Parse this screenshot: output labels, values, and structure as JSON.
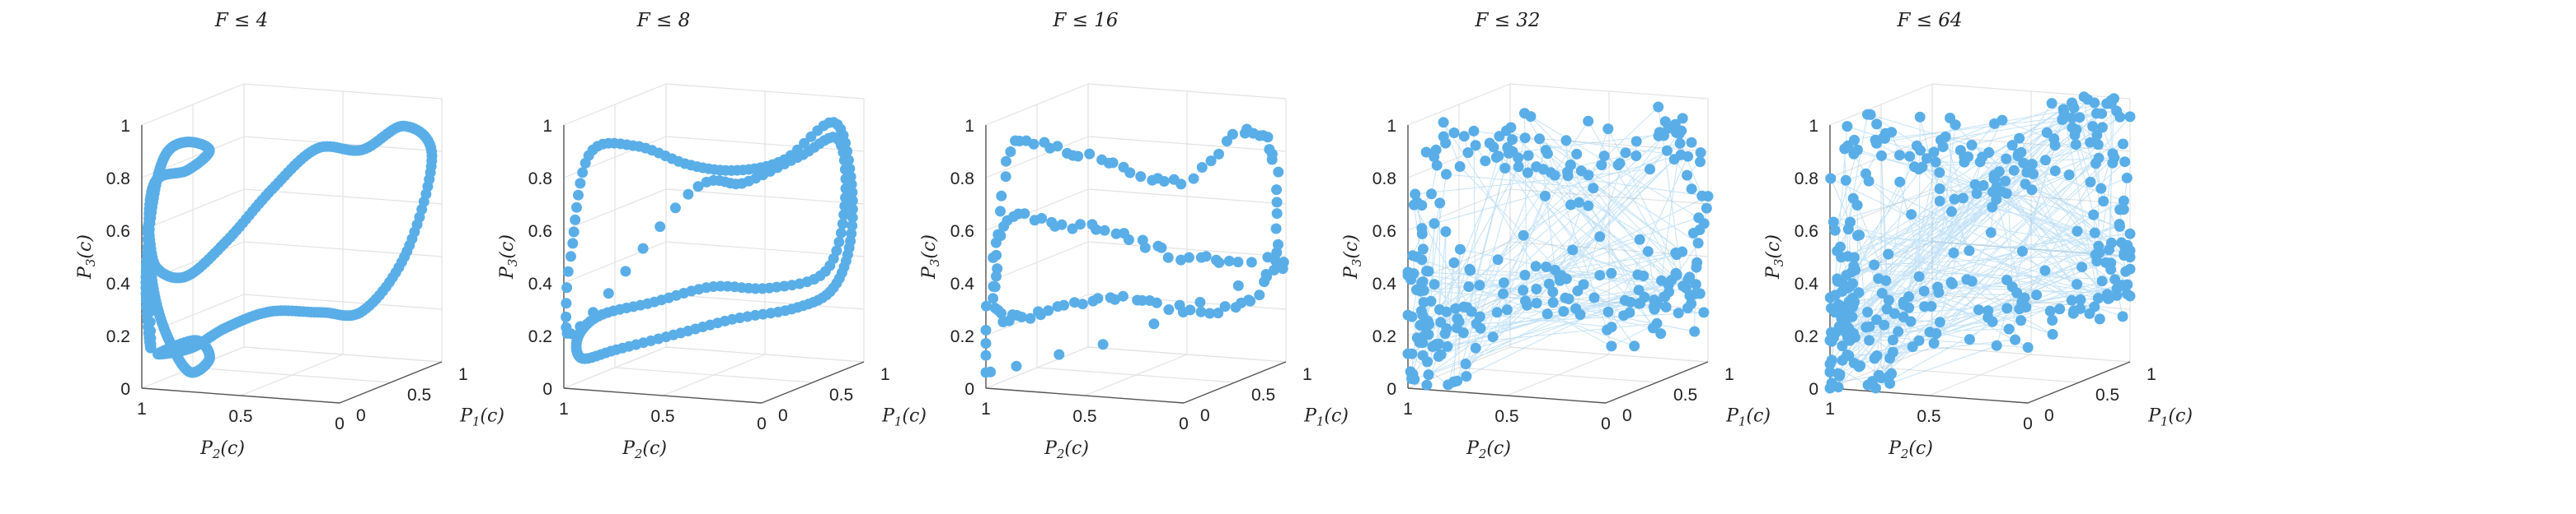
{
  "chart_data": [
    {
      "type": "scatter",
      "title": "F ≤ 4",
      "xlabel": "P_2(c)",
      "ylabel": "P_1(c)",
      "zlabel": "P_3(c)",
      "xlim": [
        0,
        1
      ],
      "ylim": [
        0,
        1
      ],
      "zlim": [
        0,
        1
      ],
      "xticks": [
        "0",
        "0.5",
        "1"
      ],
      "yticks": [
        "0",
        "0.5",
        "1"
      ],
      "zticks": [
        "0",
        "0.2",
        "0.4",
        "0.6",
        "0.8",
        "1"
      ],
      "marker_color": "#5aaee8",
      "curve_density": 420,
      "random_points": 0,
      "jitter": 0.0,
      "grid": true,
      "path": [
        {
          "p2": 0.98,
          "p1": 0.05,
          "p3": 0.15
        },
        {
          "p2": 0.99,
          "p1": 0.02,
          "p3": 0.4
        },
        {
          "p2": 0.97,
          "p1": 0.05,
          "p3": 0.7
        },
        {
          "p2": 0.92,
          "p1": 0.08,
          "p3": 0.88
        },
        {
          "p2": 0.82,
          "p1": 0.1,
          "p3": 0.93
        },
        {
          "p2": 0.72,
          "p1": 0.12,
          "p3": 0.9
        },
        {
          "p2": 0.8,
          "p1": 0.06,
          "p3": 0.83
        },
        {
          "p2": 0.95,
          "p1": 0.03,
          "p3": 0.78
        },
        {
          "p2": 0.99,
          "p1": 0.05,
          "p3": 0.55
        },
        {
          "p2": 0.97,
          "p1": 0.08,
          "p3": 0.32
        },
        {
          "p2": 0.9,
          "p1": 0.1,
          "p3": 0.15
        },
        {
          "p2": 0.82,
          "p1": 0.13,
          "p3": 0.05
        },
        {
          "p2": 0.75,
          "p1": 0.18,
          "p3": 0.1
        },
        {
          "p2": 0.83,
          "p1": 0.2,
          "p3": 0.16
        },
        {
          "p2": 0.96,
          "p1": 0.08,
          "p3": 0.12
        },
        {
          "p2": 0.88,
          "p1": 0.25,
          "p3": 0.12
        },
        {
          "p2": 0.78,
          "p1": 0.4,
          "p3": 0.18
        },
        {
          "p2": 0.65,
          "p1": 0.58,
          "p3": 0.22
        },
        {
          "p2": 0.48,
          "p1": 0.75,
          "p3": 0.2
        },
        {
          "p2": 0.32,
          "p1": 0.85,
          "p3": 0.2
        },
        {
          "p2": 0.15,
          "p1": 0.95,
          "p3": 0.42
        },
        {
          "p2": 0.05,
          "p1": 1.0,
          "p3": 0.78
        },
        {
          "p2": 0.15,
          "p1": 0.92,
          "p3": 0.9
        },
        {
          "p2": 0.3,
          "p1": 0.8,
          "p3": 0.82
        },
        {
          "p2": 0.45,
          "p1": 0.65,
          "p3": 0.84
        },
        {
          "p2": 0.6,
          "p1": 0.5,
          "p3": 0.7
        },
        {
          "p2": 0.75,
          "p1": 0.35,
          "p3": 0.52
        },
        {
          "p2": 0.88,
          "p1": 0.2,
          "p3": 0.4
        },
        {
          "p2": 0.97,
          "p1": 0.08,
          "p3": 0.45
        },
        {
          "p2": 0.99,
          "p1": 0.04,
          "p3": 0.6
        }
      ]
    },
    {
      "type": "scatter",
      "title": "F ≤ 8",
      "xlabel": "P_2(c)",
      "ylabel": "P_1(c)",
      "zlabel": "P_3(c)",
      "xlim": [
        0,
        1
      ],
      "ylim": [
        0,
        1
      ],
      "zlim": [
        0,
        1
      ],
      "xticks": [
        "0",
        "0.5",
        "1"
      ],
      "yticks": [
        "0",
        "0.5",
        "1"
      ],
      "zticks": [
        "0",
        "0.2",
        "0.4",
        "0.6",
        "0.8",
        "1"
      ],
      "marker_color": "#5aaee8",
      "curve_density": 220,
      "random_points": 0,
      "jitter": 0.0,
      "grid": true,
      "path": [
        {
          "p2": 0.99,
          "p1": 0.05,
          "p3": 0.2
        },
        {
          "p2": 0.98,
          "p1": 0.05,
          "p3": 0.55
        },
        {
          "p2": 0.92,
          "p1": 0.1,
          "p3": 0.88
        },
        {
          "p2": 0.75,
          "p1": 0.22,
          "p3": 0.9
        },
        {
          "p2": 0.55,
          "p1": 0.35,
          "p3": 0.82
        },
        {
          "p2": 0.4,
          "p1": 0.52,
          "p3": 0.78
        },
        {
          "p2": 0.25,
          "p1": 0.7,
          "p3": 0.8
        },
        {
          "p2": 0.1,
          "p1": 0.9,
          "p3": 0.92
        },
        {
          "p2": 0.05,
          "p1": 0.97,
          "p3": 0.7
        },
        {
          "p2": 0.06,
          "p1": 0.98,
          "p3": 0.45
        },
        {
          "p2": 0.12,
          "p1": 0.92,
          "p3": 0.28
        },
        {
          "p2": 0.25,
          "p1": 0.8,
          "p3": 0.22
        },
        {
          "p2": 0.45,
          "p1": 0.6,
          "p3": 0.2
        },
        {
          "p2": 0.65,
          "p1": 0.4,
          "p3": 0.16
        },
        {
          "p2": 0.85,
          "p1": 0.22,
          "p3": 0.12
        },
        {
          "p2": 0.96,
          "p1": 0.1,
          "p3": 0.1
        },
        {
          "p2": 0.98,
          "p1": 0.1,
          "p3": 0.18
        },
        {
          "p2": 0.92,
          "p1": 0.2,
          "p3": 0.25
        },
        {
          "p2": 0.75,
          "p1": 0.38,
          "p3": 0.28
        },
        {
          "p2": 0.55,
          "p1": 0.58,
          "p3": 0.32
        },
        {
          "p2": 0.35,
          "p1": 0.75,
          "p3": 0.3
        },
        {
          "p2": 0.15,
          "p1": 0.92,
          "p3": 0.35
        },
        {
          "p2": 0.08,
          "p1": 0.97,
          "p3": 0.6
        },
        {
          "p2": 0.1,
          "p1": 0.94,
          "p3": 0.85
        },
        {
          "p2": 0.22,
          "p1": 0.8,
          "p3": 0.8
        },
        {
          "p2": 0.4,
          "p1": 0.6,
          "p3": 0.72
        },
        {
          "p2": 0.58,
          "p1": 0.42,
          "p3": 0.7
        }
      ]
    },
    {
      "type": "scatter",
      "title": "F ≤ 16",
      "xlabel": "P_2(c)",
      "ylabel": "P_1(c)",
      "zlabel": "P_3(c)",
      "xlim": [
        0,
        1
      ],
      "ylim": [
        0,
        1
      ],
      "zlim": [
        0,
        1
      ],
      "xticks": [
        "0",
        "0.5",
        "1"
      ],
      "yticks": [
        "0",
        "0.5",
        "1"
      ],
      "zticks": [
        "0",
        "0.2",
        "0.4",
        "0.6",
        "0.8",
        "1"
      ],
      "marker_color": "#5aaee8",
      "curve_density": 150,
      "random_points": 0,
      "jitter": 0.015,
      "grid": true,
      "path": [
        {
          "p2": 0.99,
          "p1": 0.03,
          "p3": 0.05
        },
        {
          "p2": 0.97,
          "p1": 0.05,
          "p3": 0.45
        },
        {
          "p2": 0.92,
          "p1": 0.1,
          "p3": 0.9
        },
        {
          "p2": 0.75,
          "p1": 0.25,
          "p3": 0.88
        },
        {
          "p2": 0.55,
          "p1": 0.45,
          "p3": 0.8
        },
        {
          "p2": 0.35,
          "p1": 0.65,
          "p3": 0.72
        },
        {
          "p2": 0.15,
          "p1": 0.85,
          "p3": 0.88
        },
        {
          "p2": 0.05,
          "p1": 0.97,
          "p3": 0.8
        },
        {
          "p2": 0.04,
          "p1": 0.98,
          "p3": 0.45
        },
        {
          "p2": 0.12,
          "p1": 0.9,
          "p3": 0.25
        },
        {
          "p2": 0.3,
          "p1": 0.72,
          "p3": 0.22
        },
        {
          "p2": 0.5,
          "p1": 0.52,
          "p3": 0.28
        },
        {
          "p2": 0.7,
          "p1": 0.32,
          "p3": 0.3
        },
        {
          "p2": 0.88,
          "p1": 0.15,
          "p3": 0.25
        },
        {
          "p2": 0.98,
          "p1": 0.05,
          "p3": 0.3
        },
        {
          "p2": 0.95,
          "p1": 0.08,
          "p3": 0.62
        },
        {
          "p2": 0.8,
          "p1": 0.25,
          "p3": 0.6
        },
        {
          "p2": 0.6,
          "p1": 0.45,
          "p3": 0.55
        },
        {
          "p2": 0.4,
          "p1": 0.62,
          "p3": 0.45
        },
        {
          "p2": 0.2,
          "p1": 0.82,
          "p3": 0.4
        },
        {
          "p2": 0.06,
          "p1": 0.96,
          "p3": 0.35
        }
      ]
    },
    {
      "type": "scatter",
      "title": "F ≤ 32",
      "xlabel": "P_2(c)",
      "ylabel": "P_1(c)",
      "zlabel": "P_3(c)",
      "xlim": [
        0,
        1
      ],
      "ylim": [
        0,
        1
      ],
      "zlim": [
        0,
        1
      ],
      "xticks": [
        "0",
        "0.5",
        "1"
      ],
      "yticks": [
        "0",
        "0.5",
        "1"
      ],
      "zticks": [
        "0",
        "0.2",
        "0.4",
        "0.6",
        "0.8",
        "1"
      ],
      "marker_color": "#5aaee8",
      "curve_density": 110,
      "random_points": 160,
      "jitter": 0.04,
      "grid": true,
      "path": [
        {
          "p2": 0.99,
          "p1": 0.03,
          "p3": 0.05
        },
        {
          "p2": 0.96,
          "p1": 0.06,
          "p3": 0.6
        },
        {
          "p2": 0.9,
          "p1": 0.12,
          "p3": 0.92
        },
        {
          "p2": 0.7,
          "p1": 0.3,
          "p3": 0.85
        },
        {
          "p2": 0.5,
          "p1": 0.5,
          "p3": 0.78
        },
        {
          "p2": 0.3,
          "p1": 0.7,
          "p3": 0.8
        },
        {
          "p2": 0.1,
          "p1": 0.9,
          "p3": 0.9
        },
        {
          "p2": 0.04,
          "p1": 0.98,
          "p3": 0.6
        },
        {
          "p2": 0.06,
          "p1": 0.96,
          "p3": 0.25
        },
        {
          "p2": 0.25,
          "p1": 0.78,
          "p3": 0.22
        },
        {
          "p2": 0.5,
          "p1": 0.52,
          "p3": 0.3
        },
        {
          "p2": 0.75,
          "p1": 0.28,
          "p3": 0.28
        },
        {
          "p2": 0.95,
          "p1": 0.08,
          "p3": 0.22
        },
        {
          "p2": 0.97,
          "p1": 0.06,
          "p3": 0.4
        }
      ]
    },
    {
      "type": "scatter",
      "title": "F ≤ 64",
      "xlabel": "P_2(c)",
      "ylabel": "P_1(c)",
      "zlabel": "P_3(c)",
      "xlim": [
        0,
        1
      ],
      "ylim": [
        0,
        1
      ],
      "zlim": [
        0,
        1
      ],
      "xticks": [
        "0",
        "0.5",
        "1"
      ],
      "yticks": [
        "0",
        "0.5",
        "1"
      ],
      "zticks": [
        "0",
        "0.2",
        "0.4",
        "0.6",
        "0.8",
        "1"
      ],
      "marker_color": "#5aaee8",
      "curve_density": 90,
      "random_points": 240,
      "jitter": 0.06,
      "grid": true,
      "path": [
        {
          "p2": 0.99,
          "p1": 0.02,
          "p3": 0.02
        },
        {
          "p2": 0.96,
          "p1": 0.06,
          "p3": 0.6
        },
        {
          "p2": 0.9,
          "p1": 0.12,
          "p3": 0.95
        },
        {
          "p2": 0.7,
          "p1": 0.3,
          "p3": 0.85
        },
        {
          "p2": 0.5,
          "p1": 0.5,
          "p3": 0.78
        },
        {
          "p2": 0.3,
          "p1": 0.7,
          "p3": 0.82
        },
        {
          "p2": 0.1,
          "p1": 0.9,
          "p3": 0.95
        },
        {
          "p2": 0.04,
          "p1": 0.98,
          "p3": 0.6
        },
        {
          "p2": 0.06,
          "p1": 0.96,
          "p3": 0.25
        },
        {
          "p2": 0.25,
          "p1": 0.78,
          "p3": 0.2
        },
        {
          "p2": 0.5,
          "p1": 0.52,
          "p3": 0.3
        },
        {
          "p2": 0.75,
          "p1": 0.28,
          "p3": 0.28
        },
        {
          "p2": 0.95,
          "p1": 0.08,
          "p3": 0.22
        },
        {
          "p2": 0.97,
          "p1": 0.06,
          "p3": 0.4
        }
      ]
    }
  ]
}
